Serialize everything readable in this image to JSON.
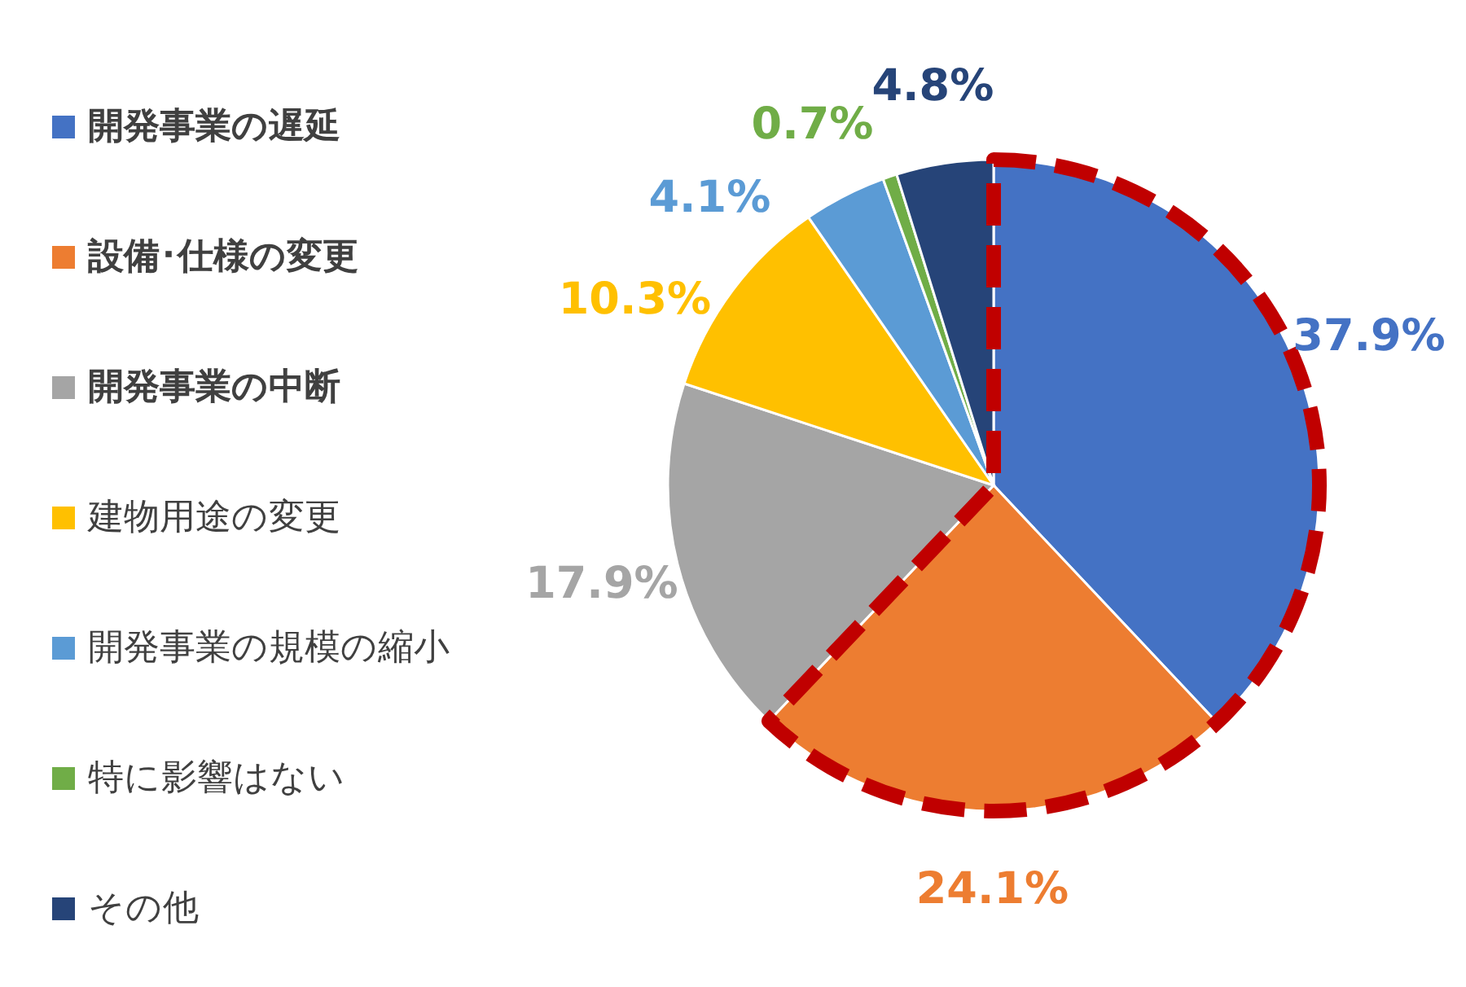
{
  "chart_data": {
    "type": "pie",
    "categories": [
      "開発事業の遅延",
      "設備･仕様の変更",
      "開発事業の中断",
      "建物用途の変更",
      "開発事業の規模の縮小",
      "特に影響はない",
      "その他"
    ],
    "values": [
      37.9,
      24.1,
      17.9,
      10.3,
      4.1,
      0.7,
      4.8
    ],
    "colors": [
      "#4472c4",
      "#ed7d31",
      "#a5a5a5",
      "#ffc000",
      "#5b9bd5",
      "#70ad47",
      "#264478"
    ],
    "value_labels": [
      "37.9%",
      "24.1%",
      "17.9%",
      "10.3%",
      "4.1%",
      "0.7%",
      "4.8%"
    ],
    "legend": "left"
  }
}
